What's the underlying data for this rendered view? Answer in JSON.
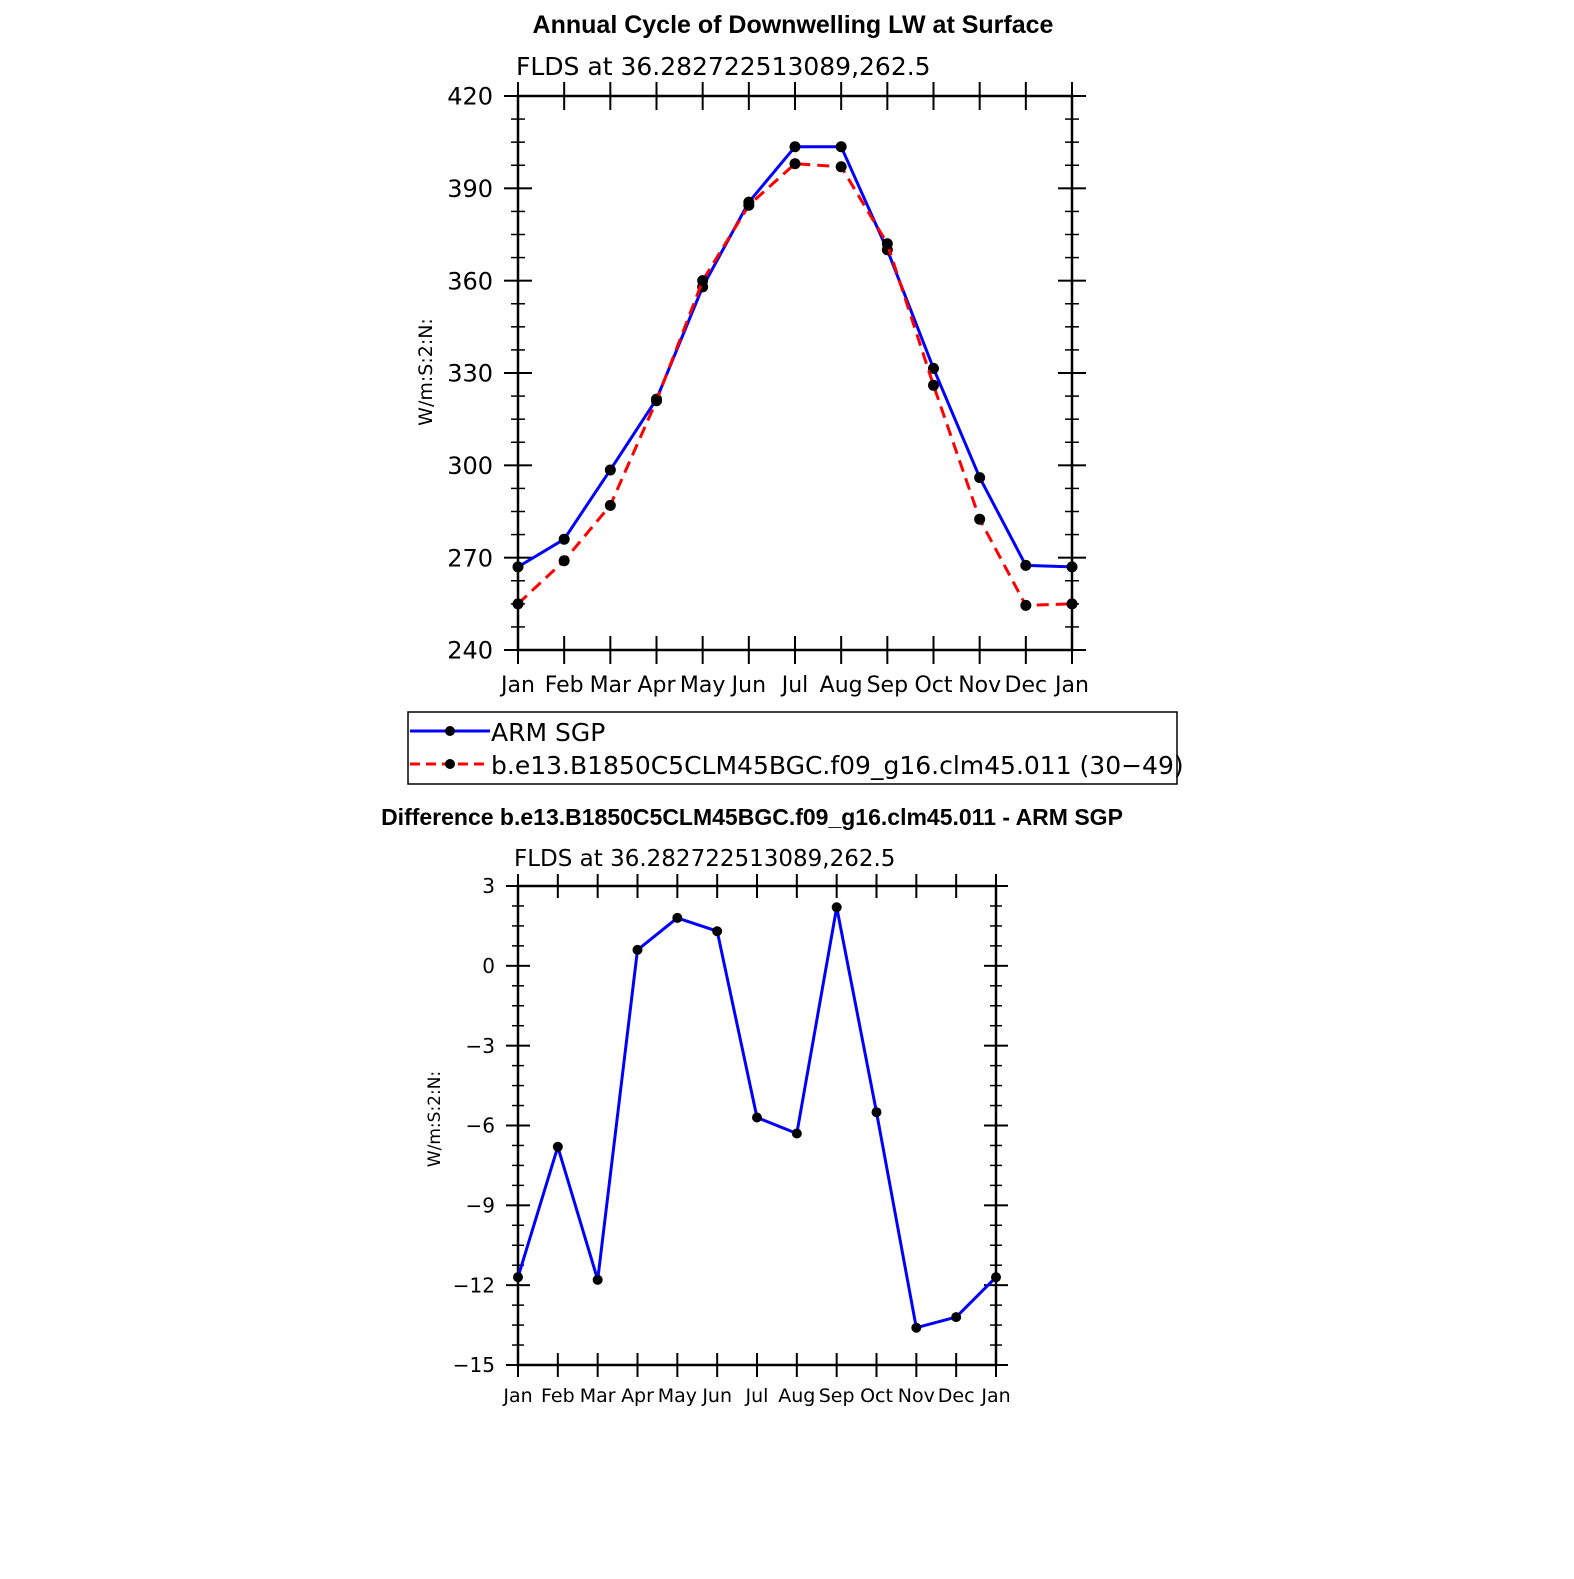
{
  "chart_data": [
    {
      "type": "line",
      "title": "Annual Cycle of Downwelling LW at Surface",
      "subtitle": "FLDS at 36.282722513089,262.5",
      "ylabel": "W/m:S:2:N:",
      "xlabel": "",
      "ylim": [
        240,
        420
      ],
      "yticks": [
        "240",
        "270",
        "300",
        "330",
        "360",
        "390",
        "420"
      ],
      "categories": [
        "Jan",
        "Feb",
        "Mar",
        "Apr",
        "May",
        "Jun",
        "Jul",
        "Aug",
        "Sep",
        "Oct",
        "Nov",
        "Dec",
        "Jan"
      ],
      "grid": false,
      "legend_position": "below",
      "series": [
        {
          "name": "ARM SGP",
          "color": "#0000ff",
          "dash": "solid",
          "values": [
            267,
            276,
            298.5,
            321.5,
            358,
            385.5,
            403.5,
            403.5,
            370,
            331.5,
            296,
            267.5,
            267
          ]
        },
        {
          "name": "b.e13.B1850C5CLM45BGC.f09_g16.clm45.011 (30−49)",
          "color": "#ff0000",
          "dash": "dashed",
          "values": [
            255,
            269,
            287,
            321,
            360,
            384.5,
            398,
            397,
            372,
            326,
            282.5,
            254.5,
            255
          ]
        }
      ]
    },
    {
      "type": "line",
      "title": "Difference b.e13.B1850C5CLM45BGC.f09_g16.clm45.011 - ARM SGP",
      "subtitle": "FLDS at 36.282722513089,262.5",
      "ylabel": "W/m:S:2:N:",
      "xlabel": "",
      "ylim": [
        -15,
        3
      ],
      "yticks": [
        "−15",
        "−12",
        "−9",
        "−6",
        "−3",
        "0",
        "3"
      ],
      "categories": [
        "Jan",
        "Feb",
        "Mar",
        "Apr",
        "May",
        "Jun",
        "Jul",
        "Aug",
        "Sep",
        "Oct",
        "Nov",
        "Dec",
        "Jan"
      ],
      "grid": false,
      "series": [
        {
          "color": "#0000ff",
          "dash": "solid",
          "values": [
            -11.7,
            -6.8,
            -11.8,
            0.6,
            1.8,
            1.3,
            -5.7,
            -6.3,
            2.2,
            -5.5,
            -13.6,
            -13.2,
            -11.7
          ]
        }
      ]
    }
  ]
}
